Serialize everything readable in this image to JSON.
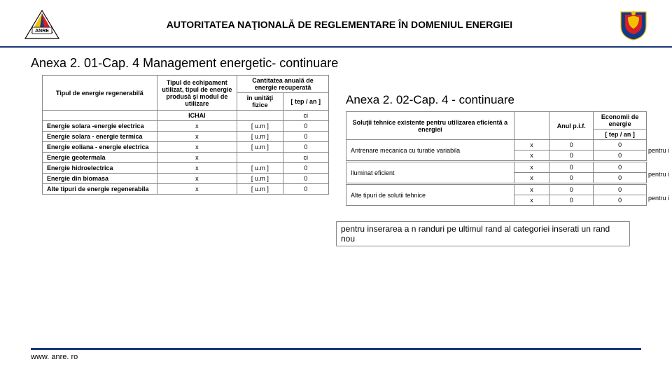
{
  "header": {
    "title": "AUTORITATEA NAŢIONALĂ DE REGLEMENTARE ÎN DOMENIUL ENERGIEI",
    "logo_left_text": "ANRE",
    "logo_left_colors": {
      "yellow": "#f2c200",
      "red": "#d61f26",
      "blue": "#1a3a7a",
      "outline": "#000000"
    },
    "logo_right_colors": {
      "blue": "#123a8a",
      "yellow": "#f2c200",
      "red": "#d61f26"
    }
  },
  "section1": {
    "title": "Anexa 2. 01-Cap. 4 Management energetic- continuare",
    "table": {
      "headers": {
        "col1": "Tipul de energie regenerabilă",
        "col2": "Tipul de echipament utilizat, tipul de energie produsă şi modul de utilizare",
        "col3_top": "Cantitatea anuală de energie recuperată",
        "col3_a": "în unităţi fizice",
        "col3_b": "[ tep / an ]",
        "ichai": "ICHAI",
        "ci": "ci"
      },
      "rows": [
        {
          "label": "Energie solara -energie electrica",
          "c2": "x",
          "c3": "[ u.m ]",
          "c4": "0"
        },
        {
          "label": "Energie solara - energie termica",
          "c2": "x",
          "c3": "[ u.m ]",
          "c4": "0"
        },
        {
          "label": "Energie eoliana - energie electrica",
          "c2": "x",
          "c3": "[ u.m ]",
          "c4": "0"
        },
        {
          "label": "Energie geotermala",
          "c2": "x",
          "c3": "",
          "c4": "ci"
        },
        {
          "label": "Energie hidroelectrica",
          "c2": "x",
          "c3": "[ u.m ]",
          "c4": "0"
        },
        {
          "label": "Energie din biomasa",
          "c2": "x",
          "c3": "[ u.m ]",
          "c4": "0"
        },
        {
          "label": "Alte tipuri de energie regenerabila",
          "c2": "x",
          "c3": "[ u.m ]",
          "c4": "0"
        }
      ]
    }
  },
  "section2": {
    "title": "Anexa 2. 02-Cap. 4 - continuare",
    "table": {
      "headers": {
        "c1": "Soluţii tehnice existente pentru utilizarea eficientă a energiei",
        "c2": "",
        "c3": "Anul p.i.f.",
        "c4_top": "Economii de energie",
        "c4_unit": "[ tep / an ]"
      },
      "groups": [
        {
          "label": "Antrenare mecanica cu turatie variabila",
          "rows": [
            {
              "c2": "x",
              "c3": "0",
              "c4": "0",
              "out": ""
            },
            {
              "c2": "x",
              "c3": "0",
              "c4": "0",
              "out": "pentru i"
            }
          ]
        },
        {
          "label": "Iluminat eficient",
          "rows": [
            {
              "c2": "x",
              "c3": "0",
              "c4": "0",
              "out": ""
            },
            {
              "c2": "x",
              "c3": "0",
              "c4": "0",
              "out": "pentru i"
            }
          ]
        },
        {
          "label": "Alte tipuri de solutii tehnice",
          "rows": [
            {
              "c2": "x",
              "c3": "0",
              "c4": "0",
              "out": ""
            },
            {
              "c2": "x",
              "c3": "0",
              "c4": "0",
              "out": "pentru i"
            }
          ]
        }
      ]
    }
  },
  "note": "pentru inserarea a n randuri pe ultimul rand al categoriei inserati un rand nou",
  "footer": "www. anre. ro",
  "colors": {
    "rule": "#1a3a7a",
    "border": "#888888",
    "text": "#000000",
    "background": "#ffffff"
  }
}
